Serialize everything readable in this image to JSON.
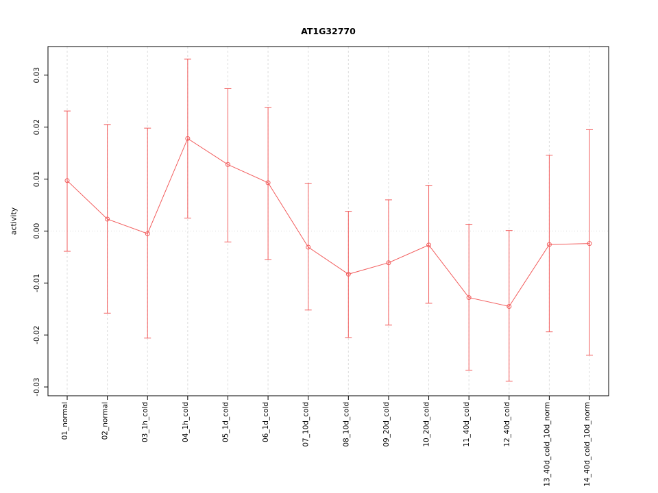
{
  "chart_data": {
    "type": "line",
    "title": "AT1G32770",
    "xlabel": "",
    "ylabel": "activity",
    "ylim": [
      -0.0317,
      0.0355
    ],
    "yticks": [
      -0.03,
      -0.02,
      -0.01,
      0.0,
      0.01,
      0.02,
      0.03
    ],
    "grid": true,
    "legend_position": "none",
    "categories": [
      "01_normal",
      "02_normal",
      "03_1h_cold",
      "04_1h_cold",
      "05_1d_cold",
      "06_1d_cold",
      "07_10d_cold",
      "08_10d_cold",
      "09_20d_cold",
      "10_20d_cold",
      "11_40d_cold",
      "12_40d_cold",
      "13_40d_cold_10d_norm",
      "14_40d_cold_10d_norm"
    ],
    "series": [
      {
        "name": "activity",
        "values": [
          0.0097,
          0.0023,
          -0.0005,
          0.0178,
          0.0128,
          0.0093,
          -0.0031,
          -0.0083,
          -0.0061,
          -0.0027,
          -0.0128,
          -0.0145,
          -0.0026,
          -0.0024
        ],
        "lower": [
          -0.0039,
          -0.0158,
          -0.0206,
          0.0025,
          -0.0021,
          -0.0055,
          -0.0152,
          -0.0205,
          -0.0181,
          -0.0139,
          -0.0268,
          -0.0289,
          -0.0194,
          -0.0239
        ],
        "upper": [
          0.0231,
          0.0205,
          0.0198,
          0.0331,
          0.0274,
          0.0238,
          0.0092,
          0.0038,
          0.006,
          0.0088,
          0.0013,
          0.0001,
          0.0146,
          0.0195
        ]
      }
    ],
    "series_color": "#f25c5c",
    "grid_color": "#dcdcdc",
    "axis_color": "#000000"
  }
}
